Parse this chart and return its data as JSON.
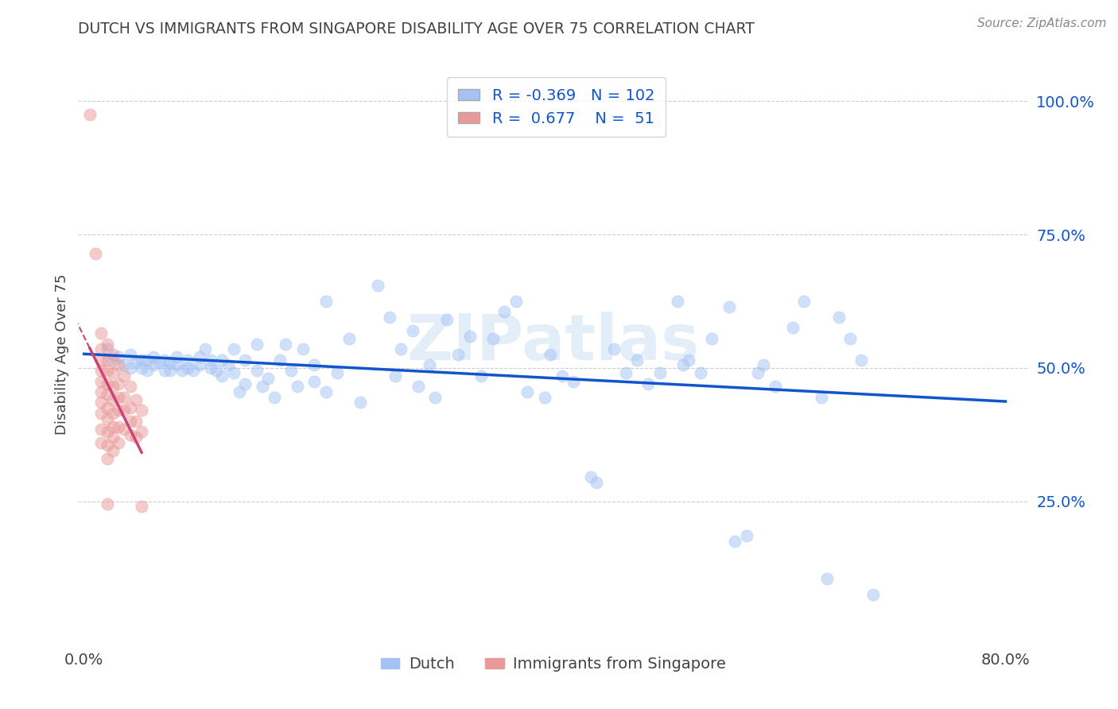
{
  "title": "DUTCH VS IMMIGRANTS FROM SINGAPORE DISABILITY AGE OVER 75 CORRELATION CHART",
  "source": "Source: ZipAtlas.com",
  "ylabel": "Disability Age Over 75",
  "xlim": [
    -0.005,
    0.82
  ],
  "ylim": [
    -0.02,
    1.07
  ],
  "x_tick_vals": [
    0.0,
    0.8
  ],
  "x_tick_labels": [
    "0.0%",
    "80.0%"
  ],
  "y_tick_vals_right": [
    1.0,
    0.75,
    0.5,
    0.25
  ],
  "y_tick_labels_right": [
    "100.0%",
    "75.0%",
    "50.0%",
    "25.0%"
  ],
  "watermark": "ZIPatlas",
  "dutch_R": -0.369,
  "dutch_N": 102,
  "singapore_R": 0.677,
  "singapore_N": 51,
  "dutch_color": "#a4c2f4",
  "singapore_color": "#ea9999",
  "dutch_line_color": "#1155cc",
  "singapore_line_color": "#cc4477",
  "dutch_scatter": [
    [
      0.02,
      0.535
    ],
    [
      0.025,
      0.515
    ],
    [
      0.03,
      0.52
    ],
    [
      0.035,
      0.505
    ],
    [
      0.04,
      0.525
    ],
    [
      0.04,
      0.5
    ],
    [
      0.045,
      0.51
    ],
    [
      0.05,
      0.515
    ],
    [
      0.05,
      0.5
    ],
    [
      0.055,
      0.515
    ],
    [
      0.055,
      0.495
    ],
    [
      0.06,
      0.52
    ],
    [
      0.06,
      0.505
    ],
    [
      0.065,
      0.51
    ],
    [
      0.07,
      0.515
    ],
    [
      0.07,
      0.495
    ],
    [
      0.075,
      0.51
    ],
    [
      0.075,
      0.495
    ],
    [
      0.08,
      0.52
    ],
    [
      0.08,
      0.505
    ],
    [
      0.085,
      0.495
    ],
    [
      0.09,
      0.515
    ],
    [
      0.09,
      0.5
    ],
    [
      0.095,
      0.495
    ],
    [
      0.1,
      0.52
    ],
    [
      0.1,
      0.505
    ],
    [
      0.105,
      0.535
    ],
    [
      0.11,
      0.5
    ],
    [
      0.11,
      0.515
    ],
    [
      0.115,
      0.495
    ],
    [
      0.12,
      0.485
    ],
    [
      0.12,
      0.515
    ],
    [
      0.125,
      0.505
    ],
    [
      0.13,
      0.535
    ],
    [
      0.13,
      0.49
    ],
    [
      0.135,
      0.455
    ],
    [
      0.14,
      0.515
    ],
    [
      0.14,
      0.47
    ],
    [
      0.15,
      0.545
    ],
    [
      0.15,
      0.495
    ],
    [
      0.155,
      0.465
    ],
    [
      0.16,
      0.48
    ],
    [
      0.165,
      0.445
    ],
    [
      0.17,
      0.515
    ],
    [
      0.175,
      0.545
    ],
    [
      0.18,
      0.495
    ],
    [
      0.185,
      0.465
    ],
    [
      0.19,
      0.535
    ],
    [
      0.2,
      0.505
    ],
    [
      0.2,
      0.475
    ],
    [
      0.21,
      0.625
    ],
    [
      0.21,
      0.455
    ],
    [
      0.22,
      0.49
    ],
    [
      0.23,
      0.555
    ],
    [
      0.24,
      0.435
    ],
    [
      0.255,
      0.655
    ],
    [
      0.265,
      0.595
    ],
    [
      0.27,
      0.485
    ],
    [
      0.275,
      0.535
    ],
    [
      0.285,
      0.57
    ],
    [
      0.29,
      0.465
    ],
    [
      0.3,
      0.505
    ],
    [
      0.305,
      0.445
    ],
    [
      0.315,
      0.59
    ],
    [
      0.325,
      0.525
    ],
    [
      0.335,
      0.56
    ],
    [
      0.345,
      0.485
    ],
    [
      0.355,
      0.555
    ],
    [
      0.365,
      0.605
    ],
    [
      0.375,
      0.625
    ],
    [
      0.385,
      0.455
    ],
    [
      0.4,
      0.445
    ],
    [
      0.405,
      0.525
    ],
    [
      0.415,
      0.485
    ],
    [
      0.425,
      0.475
    ],
    [
      0.44,
      0.295
    ],
    [
      0.445,
      0.285
    ],
    [
      0.46,
      0.535
    ],
    [
      0.47,
      0.49
    ],
    [
      0.48,
      0.515
    ],
    [
      0.49,
      0.47
    ],
    [
      0.5,
      0.49
    ],
    [
      0.515,
      0.625
    ],
    [
      0.52,
      0.505
    ],
    [
      0.525,
      0.515
    ],
    [
      0.535,
      0.49
    ],
    [
      0.545,
      0.555
    ],
    [
      0.56,
      0.615
    ],
    [
      0.565,
      0.175
    ],
    [
      0.575,
      0.185
    ],
    [
      0.585,
      0.49
    ],
    [
      0.59,
      0.505
    ],
    [
      0.6,
      0.465
    ],
    [
      0.615,
      0.575
    ],
    [
      0.625,
      0.625
    ],
    [
      0.64,
      0.445
    ],
    [
      0.645,
      0.105
    ],
    [
      0.655,
      0.595
    ],
    [
      0.665,
      0.555
    ],
    [
      0.675,
      0.515
    ],
    [
      0.685,
      0.075
    ]
  ],
  "singapore_scatter": [
    [
      0.005,
      0.975
    ],
    [
      0.01,
      0.715
    ],
    [
      0.015,
      0.565
    ],
    [
      0.015,
      0.535
    ],
    [
      0.015,
      0.515
    ],
    [
      0.015,
      0.495
    ],
    [
      0.015,
      0.475
    ],
    [
      0.015,
      0.455
    ],
    [
      0.015,
      0.435
    ],
    [
      0.015,
      0.415
    ],
    [
      0.015,
      0.385
    ],
    [
      0.015,
      0.36
    ],
    [
      0.02,
      0.545
    ],
    [
      0.02,
      0.515
    ],
    [
      0.02,
      0.495
    ],
    [
      0.02,
      0.47
    ],
    [
      0.02,
      0.45
    ],
    [
      0.02,
      0.425
    ],
    [
      0.02,
      0.405
    ],
    [
      0.02,
      0.38
    ],
    [
      0.02,
      0.355
    ],
    [
      0.02,
      0.33
    ],
    [
      0.02,
      0.245
    ],
    [
      0.025,
      0.525
    ],
    [
      0.025,
      0.49
    ],
    [
      0.025,
      0.465
    ],
    [
      0.025,
      0.44
    ],
    [
      0.025,
      0.415
    ],
    [
      0.025,
      0.39
    ],
    [
      0.025,
      0.37
    ],
    [
      0.025,
      0.345
    ],
    [
      0.03,
      0.505
    ],
    [
      0.03,
      0.47
    ],
    [
      0.03,
      0.445
    ],
    [
      0.03,
      0.42
    ],
    [
      0.03,
      0.39
    ],
    [
      0.03,
      0.36
    ],
    [
      0.035,
      0.485
    ],
    [
      0.035,
      0.445
    ],
    [
      0.035,
      0.42
    ],
    [
      0.035,
      0.385
    ],
    [
      0.04,
      0.465
    ],
    [
      0.04,
      0.425
    ],
    [
      0.04,
      0.4
    ],
    [
      0.04,
      0.375
    ],
    [
      0.045,
      0.44
    ],
    [
      0.045,
      0.4
    ],
    [
      0.045,
      0.37
    ],
    [
      0.05,
      0.42
    ],
    [
      0.05,
      0.38
    ],
    [
      0.05,
      0.24
    ]
  ],
  "background_color": "#ffffff",
  "grid_color": "#cccccc",
  "title_color": "#434343",
  "axis_label_color": "#434343",
  "tick_color": "#434343"
}
